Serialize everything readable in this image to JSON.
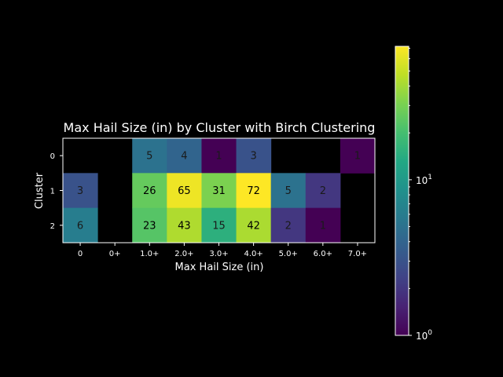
{
  "chart_data": {
    "type": "heatmap",
    "title": "Max Hail Size (in) by Cluster with Birch Clustering",
    "xlabel": "Max Hail Size (in)",
    "ylabel": "Cluster",
    "x_categories": [
      "0",
      "0+",
      "1.0+",
      "2.0+",
      "3.0+",
      "4.0+",
      "5.0+",
      "6.0+",
      "7.0+"
    ],
    "y_categories": [
      "0",
      "1",
      "2"
    ],
    "values": [
      [
        null,
        null,
        5,
        4,
        1,
        3,
        null,
        null,
        1
      ],
      [
        3,
        null,
        26,
        65,
        31,
        72,
        5,
        2,
        null
      ],
      [
        6,
        null,
        23,
        43,
        15,
        42,
        2,
        1,
        null
      ]
    ],
    "color_scale": "log",
    "colormap": "viridis",
    "color_range": [
      1,
      72
    ],
    "colorbar_ticks": [
      {
        "base": "10",
        "exp": "0",
        "value": 1
      },
      {
        "base": "10",
        "exp": "1",
        "value": 10
      }
    ],
    "background": "#000000",
    "empty_cell_color": "#000000"
  }
}
